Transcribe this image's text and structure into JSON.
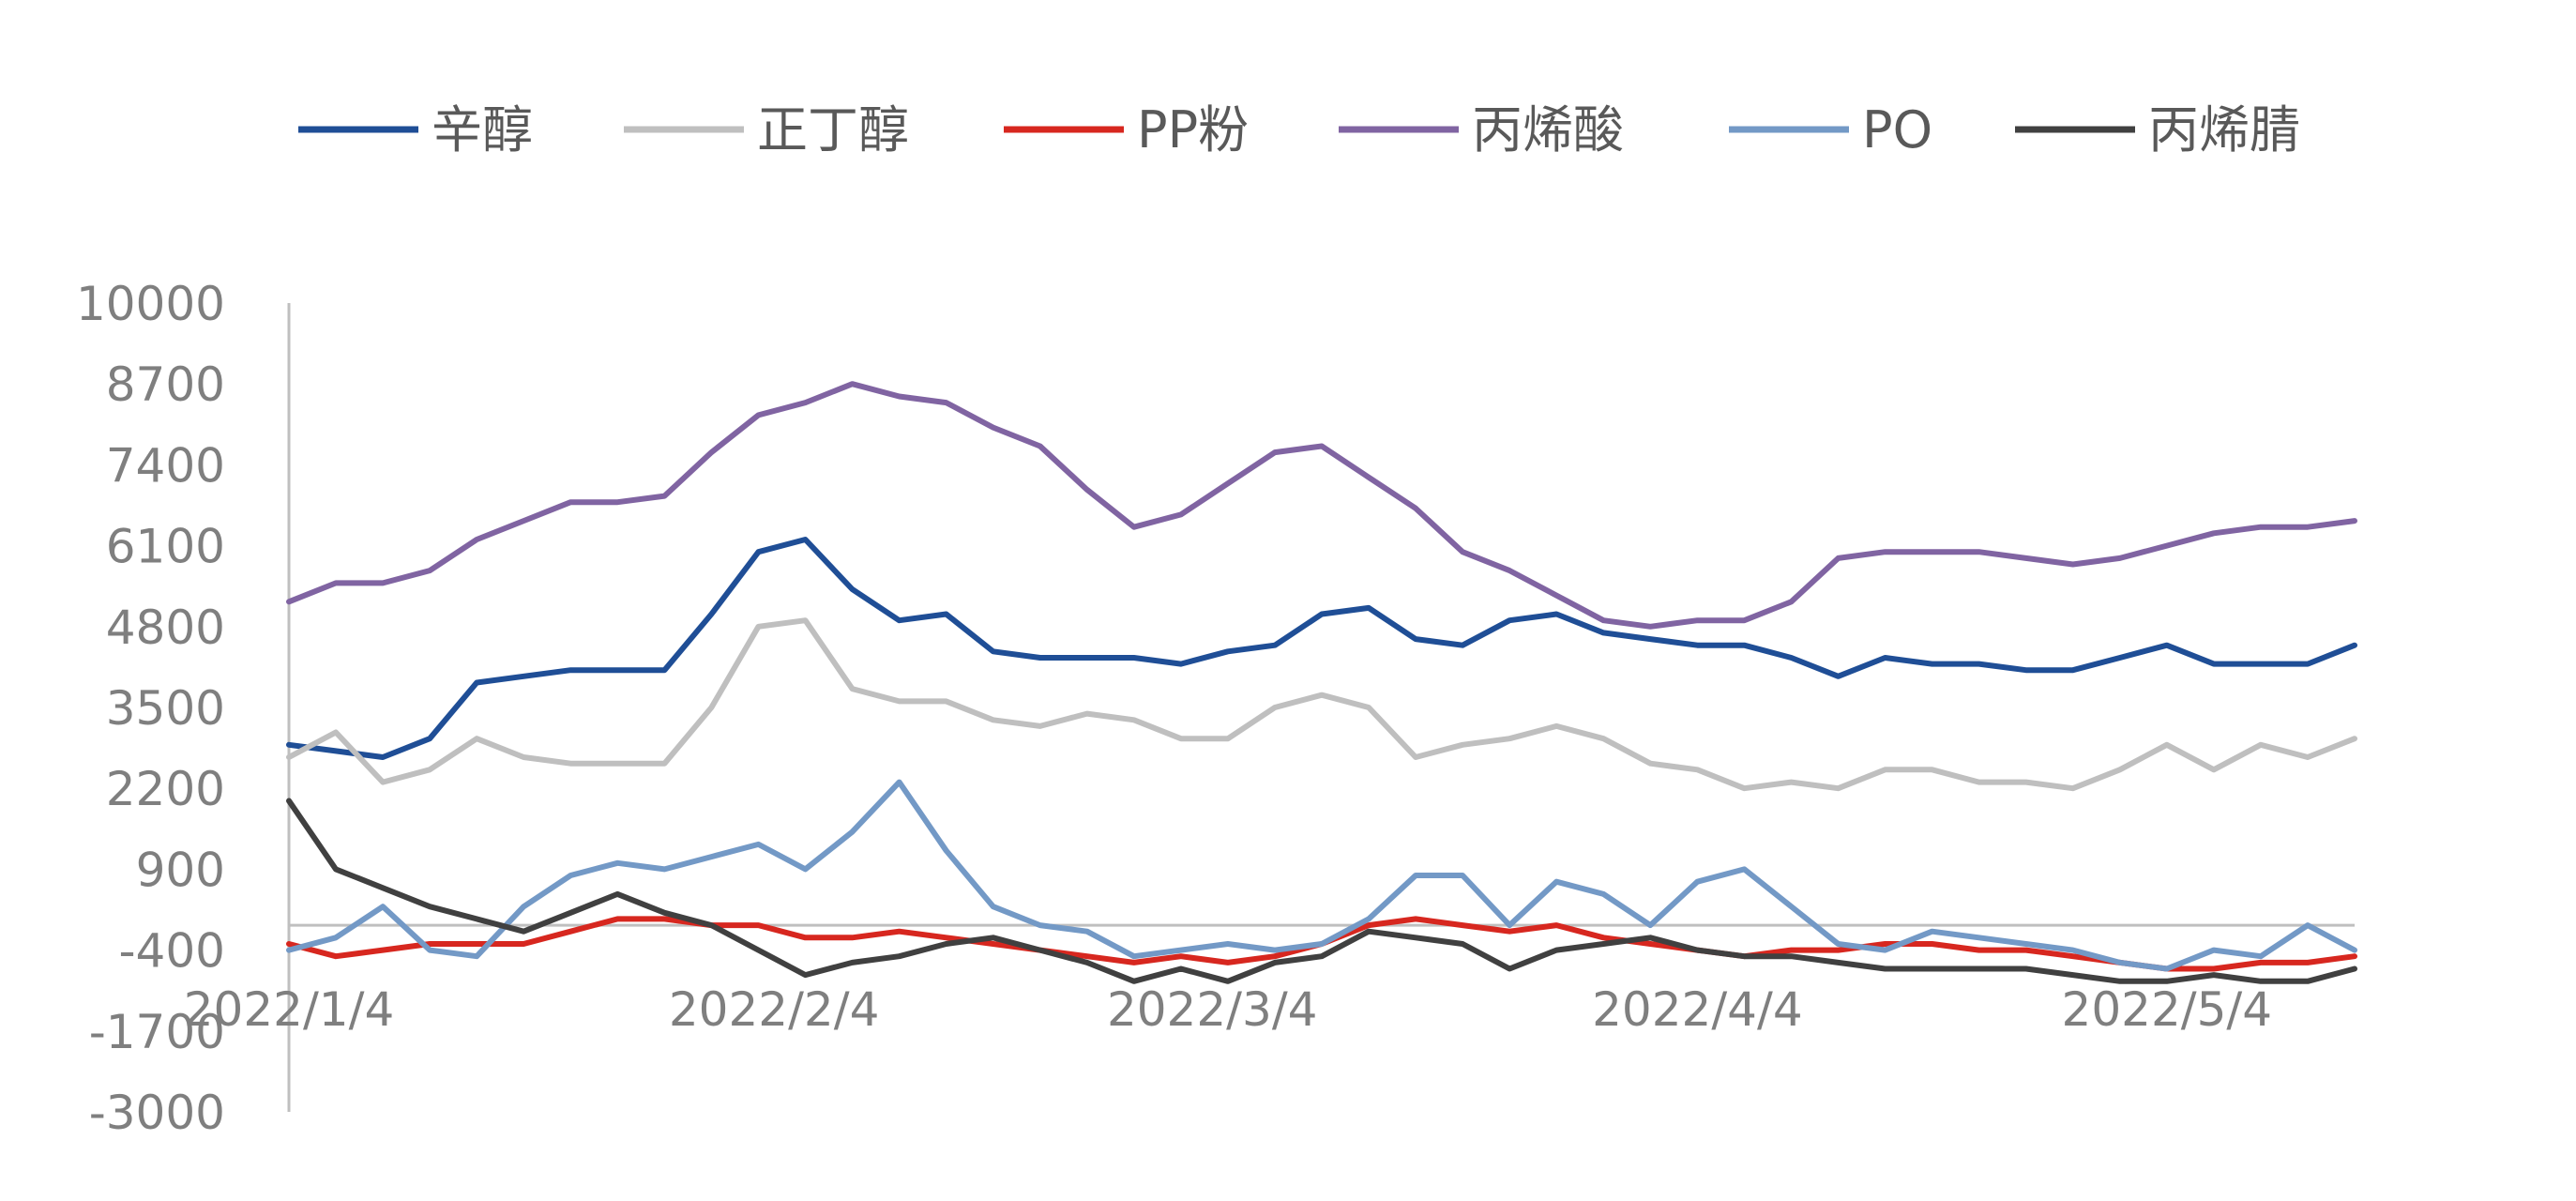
{
  "chart_data": {
    "type": "line",
    "title": "",
    "xlabel": "",
    "ylabel": "",
    "ylim": [
      -3000,
      10000
    ],
    "yticks": [
      "10000",
      "8700",
      "7400",
      "6100",
      "4800",
      "3500",
      "2200",
      "900",
      "-400",
      "-1700",
      "-3000"
    ],
    "xticks": [
      "2022/1/4",
      "2022/2/4",
      "2022/3/4",
      "2022/4/4",
      "2022/5/4"
    ],
    "x": [
      "2022/1/4",
      "2022/1/7",
      "2022/1/10",
      "2022/1/13",
      "2022/1/16",
      "2022/1/19",
      "2022/1/22",
      "2022/1/25",
      "2022/1/28",
      "2022/1/31",
      "2022/2/3",
      "2022/2/6",
      "2022/2/9",
      "2022/2/12",
      "2022/2/15",
      "2022/2/18",
      "2022/2/21",
      "2022/2/24",
      "2022/2/27",
      "2022/3/2",
      "2022/3/5",
      "2022/3/8",
      "2022/3/11",
      "2022/3/14",
      "2022/3/17",
      "2022/3/20",
      "2022/3/23",
      "2022/3/26",
      "2022/3/29",
      "2022/4/1",
      "2022/4/4",
      "2022/4/7",
      "2022/4/10",
      "2022/4/13",
      "2022/4/16",
      "2022/4/19",
      "2022/4/22",
      "2022/4/25",
      "2022/4/28",
      "2022/5/1",
      "2022/5/4",
      "2022/5/7",
      "2022/5/10",
      "2022/5/13",
      "2022/5/16"
    ],
    "series": [
      {
        "name": "辛醇",
        "color": "#1f4e96",
        "values": [
          2900,
          2800,
          2700,
          3000,
          3900,
          4000,
          4100,
          4100,
          4100,
          5000,
          6000,
          6200,
          5400,
          4900,
          5000,
          4400,
          4300,
          4300,
          4300,
          4200,
          4400,
          4500,
          5000,
          5100,
          4600,
          4500,
          4900,
          5000,
          4700,
          4600,
          4500,
          4500,
          4300,
          4000,
          4300,
          4200,
          4200,
          4100,
          4100,
          4300,
          4500,
          4200,
          4200,
          4200,
          4500
        ]
      },
      {
        "name": "正丁醇",
        "color": "#bfbfbf",
        "values": [
          2700,
          3100,
          2300,
          2500,
          3000,
          2700,
          2600,
          2600,
          2600,
          3500,
          4800,
          4900,
          3800,
          3600,
          3600,
          3300,
          3200,
          3400,
          3300,
          3000,
          3000,
          3500,
          3700,
          3500,
          2700,
          2900,
          3000,
          3200,
          3000,
          2600,
          2500,
          2200,
          2300,
          2200,
          2500,
          2500,
          2300,
          2300,
          2200,
          2500,
          2900,
          2500,
          2900,
          2700,
          3000
        ]
      },
      {
        "name": "PP粉",
        "color": "#d7271f",
        "values": [
          -300,
          -500,
          -400,
          -300,
          -300,
          -300,
          -100,
          100,
          100,
          0,
          0,
          -200,
          -200,
          -100,
          -200,
          -300,
          -400,
          -500,
          -600,
          -500,
          -600,
          -500,
          -300,
          0,
          100,
          0,
          -100,
          0,
          -200,
          -300,
          -400,
          -500,
          -400,
          -400,
          -300,
          -300,
          -400,
          -400,
          -500,
          -600,
          -700,
          -700,
          -600,
          -600,
          -500
        ]
      },
      {
        "name": "丙烯酸",
        "color": "#8064a2",
        "values": [
          5200,
          5500,
          5500,
          5700,
          6200,
          6500,
          6800,
          6800,
          6900,
          7600,
          8200,
          8400,
          8700,
          8500,
          8400,
          8000,
          7700,
          7000,
          6400,
          6600,
          7100,
          7600,
          7700,
          7200,
          6700,
          6000,
          5700,
          5300,
          4900,
          4800,
          4900,
          4900,
          5200,
          5900,
          6000,
          6000,
          6000,
          5900,
          5800,
          5900,
          6100,
          6300,
          6400,
          6400,
          6500
        ]
      },
      {
        "name": "PO",
        "color": "#7399c6",
        "values": [
          -400,
          -200,
          300,
          -400,
          -500,
          300,
          800,
          1000,
          900,
          1100,
          1300,
          900,
          1500,
          2300,
          1200,
          300,
          0,
          -100,
          -500,
          -400,
          -300,
          -400,
          -300,
          100,
          800,
          800,
          0,
          700,
          500,
          0,
          700,
          900,
          300,
          -300,
          -400,
          -100,
          -200,
          -300,
          -400,
          -600,
          -700,
          -400,
          -500,
          0,
          -400
        ]
      },
      {
        "name": "丙烯腈",
        "color": "#404040",
        "values": [
          2000,
          900,
          600,
          300,
          100,
          -100,
          200,
          500,
          200,
          0,
          -400,
          -800,
          -600,
          -500,
          -300,
          -200,
          -400,
          -600,
          -900,
          -700,
          -900,
          -600,
          -500,
          -100,
          -200,
          -300,
          -700,
          -400,
          -300,
          -200,
          -400,
          -500,
          -500,
          -600,
          -700,
          -700,
          -700,
          -700,
          -800,
          -900,
          -900,
          -800,
          -900,
          -900,
          -700
        ]
      }
    ]
  }
}
